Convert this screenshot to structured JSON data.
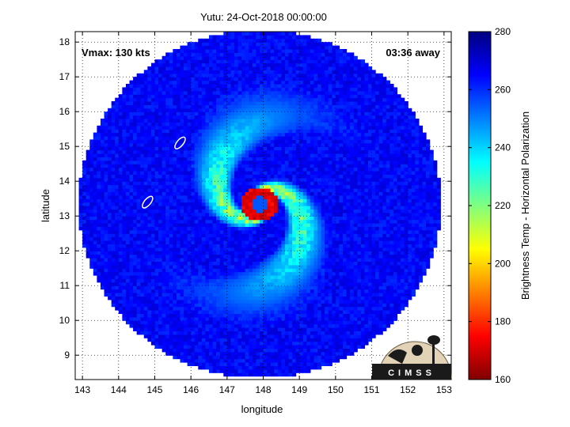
{
  "chart_data": {
    "type": "heatmap",
    "title": "Yutu: 24-Oct-2018 00:00:00",
    "xlabel": "longitude",
    "ylabel": "latitude",
    "xlim": [
      142.8,
      153.2
    ],
    "ylim": [
      8.3,
      18.3
    ],
    "xticks": [
      143,
      144,
      145,
      146,
      147,
      148,
      149,
      150,
      151,
      152,
      153
    ],
    "yticks": [
      9,
      10,
      11,
      12,
      13,
      14,
      15,
      16,
      17,
      18
    ],
    "grid": true,
    "annotations": {
      "vmax": "Vmax: 130 kts",
      "time_away": "03:36 away"
    },
    "colorbar": {
      "label": "Brightness Temp - Horizontal Polarization",
      "range": [
        160,
        280
      ],
      "ticks": [
        160,
        180,
        200,
        220,
        240,
        260,
        280
      ],
      "colormap": "jet"
    },
    "storm": {
      "center": {
        "lon": 147.9,
        "lat": 13.35
      },
      "swath_radius_deg": 5.0,
      "background_temp": 265,
      "eye_temp": 255,
      "eyewall_temp": 172,
      "rainband_temp": 215
    },
    "islands": [
      {
        "lon": 145.7,
        "lat": 15.1
      },
      {
        "lon": 144.8,
        "lat": 13.4
      }
    ]
  },
  "logo": {
    "text": "CIMSS"
  }
}
